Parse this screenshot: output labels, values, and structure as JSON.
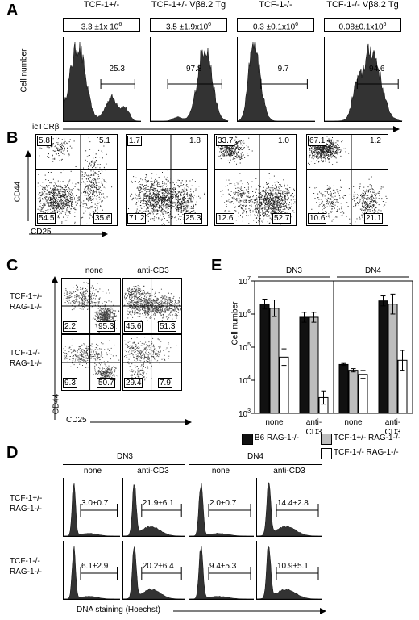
{
  "panels": {
    "A": {
      "letter": "A",
      "ylabel": "Cell number",
      "xlabel": "icTCRβ",
      "plots": [
        {
          "title": "TCF-1+/-",
          "count": "3.3 ±1x 10",
          "count_exp": "6",
          "pct": "25.3"
        },
        {
          "title": "TCF-1+/- Vβ8.2 Tg",
          "count": "3.5 ±1.9x10",
          "count_exp": "6",
          "pct": "97.8"
        },
        {
          "title": "TCF-1-/-",
          "count": "0.3 ±0.1x10",
          "count_exp": "6",
          "pct": "9.7"
        },
        {
          "title": "TCF-1-/- Vβ8.2 Tg",
          "count": "0.08±0.1x10",
          "count_exp": "6",
          "pct": "94.6"
        }
      ]
    },
    "B": {
      "letter": "B",
      "ylabel": "CD44",
      "xlabel": "CD25",
      "plots": [
        {
          "ul": "5.8",
          "ur": "5.1",
          "ll": "54.5",
          "lr": "35.6"
        },
        {
          "ul": "1.7",
          "ur": "1.8",
          "ll": "71.2",
          "lr": "25.3"
        },
        {
          "ul": "33.7",
          "ur": "1.0",
          "ll": "12.6",
          "lr": "52.7"
        },
        {
          "ul": "67.1",
          "ur": "1.2",
          "ll": "10.6",
          "lr": "21.1"
        }
      ]
    },
    "C": {
      "letter": "C",
      "col_labels": [
        "none",
        "anti-CD3"
      ],
      "row_labels": [
        [
          "TCF-1+/-",
          "RAG-1-/-"
        ],
        [
          "TCF-1-/-",
          "RAG-1-/-"
        ]
      ],
      "ylabel": "CD44",
      "xlabel": "CD25",
      "plots": [
        {
          "ll": "2.2",
          "lr": "95.3"
        },
        {
          "ll": "45.6",
          "lr": "51.3"
        },
        {
          "ll": "9.3",
          "lr": "50.7"
        },
        {
          "ll": "29.4",
          "lr": "7.9"
        }
      ]
    },
    "D": {
      "letter": "D",
      "group_labels": [
        "DN3",
        "DN4"
      ],
      "col_labels": [
        "none",
        "anti-CD3",
        "none",
        "anti-CD3"
      ],
      "row_labels": [
        [
          "TCF-1+/-",
          "RAG-1-/-"
        ],
        [
          "TCF-1-/-",
          "RAG-1-/-"
        ]
      ],
      "xlabel": "DNA staining (Hoechst)",
      "values": [
        [
          "3.0±0.7",
          "21.9±6.1",
          "2.0±0.7",
          "14.4±2.8"
        ],
        [
          "6.1±2.9",
          "20.2±6.4",
          "9.4±5.3",
          "10.9±5.1"
        ]
      ]
    },
    "E": {
      "letter": "E",
      "ylabel": "Cell number",
      "group_labels": [
        "DN3",
        "DN4"
      ],
      "cat_labels": [
        [
          "none"
        ],
        [
          "anti-",
          "CD3"
        ],
        [
          "none"
        ],
        [
          "anti-",
          "CD3"
        ]
      ],
      "yticks": [
        {
          "b": "10",
          "e": "3"
        },
        {
          "b": "10",
          "e": "4"
        },
        {
          "b": "10",
          "e": "5"
        },
        {
          "b": "10",
          "e": "6"
        },
        {
          "b": "10",
          "e": "7"
        }
      ],
      "legend": [
        "B6 RAG-1-/-",
        "TCF-1+/- RAG-1-/-",
        "TCF-1-/- RAG-1-/-"
      ],
      "colors": {
        "black": "#111111",
        "gray": "#bdbdbd",
        "white": "#ffffff"
      }
    }
  },
  "chart_data": {
    "type": "bar",
    "ylabel": "Cell number",
    "yscale": "log",
    "ylim": [
      1000,
      10000000
    ],
    "categories": [
      "DN3 none",
      "DN3 anti-CD3",
      "DN4 none",
      "DN4 anti-CD3"
    ],
    "series": [
      {
        "name": "B6 RAG-1-/-",
        "values": [
          2000000,
          800000,
          30000,
          2500000
        ],
        "err": [
          0.15,
          0.15,
          0.03,
          0.15
        ]
      },
      {
        "name": "TCF-1+/- RAG-1-/-",
        "values": [
          1500000,
          800000,
          20000,
          2000000
        ],
        "err": [
          0.25,
          0.15,
          0.05,
          0.3
        ]
      },
      {
        "name": "TCF-1-/- RAG-1-/-",
        "values": [
          50000,
          3000,
          15000,
          40000
        ],
        "err": [
          0.25,
          0.2,
          0.12,
          0.3
        ]
      }
    ]
  }
}
